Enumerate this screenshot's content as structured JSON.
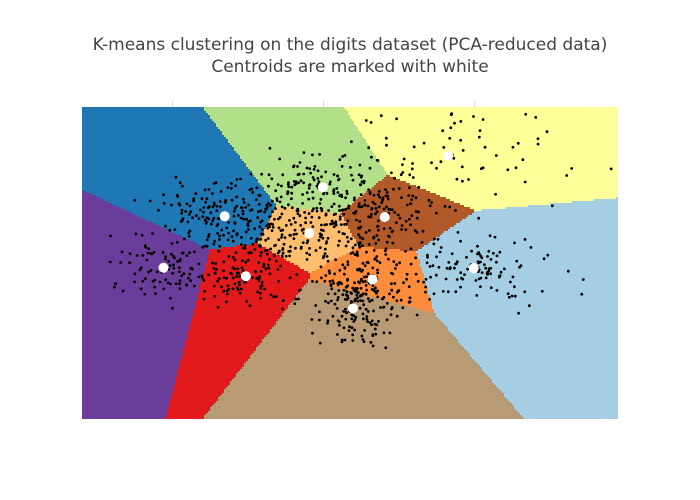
{
  "chart_data": {
    "type": "scatter",
    "title_lines": [
      "K-means clustering on the digits dataset (PCA-reduced data)",
      "Centroids are marked with white"
    ],
    "xlabel": "",
    "ylabel": "",
    "xlim": [
      -32,
      39
    ],
    "ylim": [
      -32,
      34
    ],
    "xticks": [
      -20,
      0,
      20,
      40
    ],
    "x_tick_labels_shown": false,
    "y_tick_labels_shown": false,
    "grid": false,
    "legend": "none",
    "background": "K-means decision regions (Voronoi cells of the centroids)",
    "region_colors": {
      "dark_blue": "#1f78b4",
      "light_green": "#b2df8a",
      "yellow": "#ffff99",
      "brown": "#b15928",
      "light_blue": "#a6cee3",
      "tan": "#b89b74",
      "orange": "#fd8d3c",
      "light_orange": "#fdbf6f",
      "red": "#e31a1c",
      "purple": "#6a3d9a"
    },
    "data_color": "#000000",
    "centroid_color": "#ffffff",
    "centroids": [
      {
        "x": -13.1,
        "y": 10.9
      },
      {
        "x": -0.1,
        "y": 17.0
      },
      {
        "x": 16.5,
        "y": 23.7
      },
      {
        "x": 8.1,
        "y": 10.7
      },
      {
        "x": -1.9,
        "y": 7.3
      },
      {
        "x": 19.9,
        "y": -0.1
      },
      {
        "x": 6.5,
        "y": -2.5
      },
      {
        "x": 3.9,
        "y": -8.6
      },
      {
        "x": -10.3,
        "y": -1.8
      },
      {
        "x": -21.2,
        "y": 0.0
      }
    ],
    "points_per_cluster": [
      170,
      140,
      60,
      110,
      150,
      110,
      130,
      120,
      100,
      90
    ],
    "notable_outliers": [
      {
        "x": 28.1,
        "y": 31.8
      },
      {
        "x": 29.6,
        "y": 28.8
      },
      {
        "x": 38.1,
        "y": 20.9
      },
      {
        "x": 32.2,
        "y": 19.5
      },
      {
        "x": 30.3,
        "y": 13.1
      },
      {
        "x": 34.4,
        "y": -2.5
      },
      {
        "x": 34.2,
        "y": -5.6
      },
      {
        "x": -27.7,
        "y": -4.1
      }
    ]
  }
}
